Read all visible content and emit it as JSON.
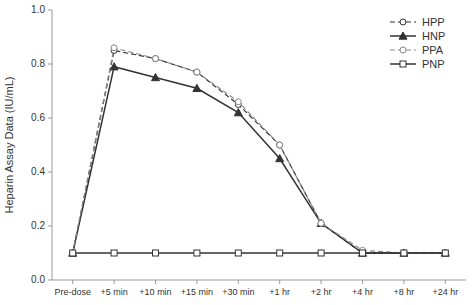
{
  "chart_data": {
    "type": "line",
    "categories": [
      "Pre-dose",
      "+5 min",
      "+10 min",
      "+15 min",
      "+30 min",
      "+1 hr",
      "+2 hr",
      "+4 hr",
      "+8 hr",
      "+24 hr"
    ],
    "series": [
      {
        "name": "HPP",
        "color": "#333333",
        "marker": "circle",
        "line_style": "dashed",
        "values": [
          0.1,
          0.85,
          0.82,
          0.77,
          0.65,
          0.5,
          0.21,
          0.1,
          0.1,
          0.1
        ]
      },
      {
        "name": "HNP",
        "color": "#333333",
        "marker": "triangle",
        "line_style": "solid",
        "values": [
          0.1,
          0.79,
          0.75,
          0.71,
          0.62,
          0.45,
          0.21,
          0.1,
          0.1,
          0.1
        ]
      },
      {
        "name": "PPA",
        "color": "#888888",
        "marker": "circle",
        "line_style": "dashed",
        "values": [
          0.1,
          0.86,
          0.82,
          0.77,
          0.66,
          0.5,
          0.21,
          0.11,
          0.1,
          0.1
        ]
      },
      {
        "name": "PNP",
        "color": "#333333",
        "marker": "square",
        "line_style": "solid",
        "values": [
          0.1,
          0.1,
          0.1,
          0.1,
          0.1,
          0.1,
          0.1,
          0.1,
          0.1,
          0.1
        ]
      }
    ],
    "ylabel": "Heparin Assay Data (IU/mL)",
    "ylim": [
      0,
      1.0
    ],
    "yticks": [
      {
        "value": 0,
        "label": "0.0"
      },
      0.2,
      0.4,
      0.6,
      0.8,
      {
        "value": 1.0,
        "label": "1.0"
      }
    ],
    "grid": false,
    "legend": "upper right"
  }
}
